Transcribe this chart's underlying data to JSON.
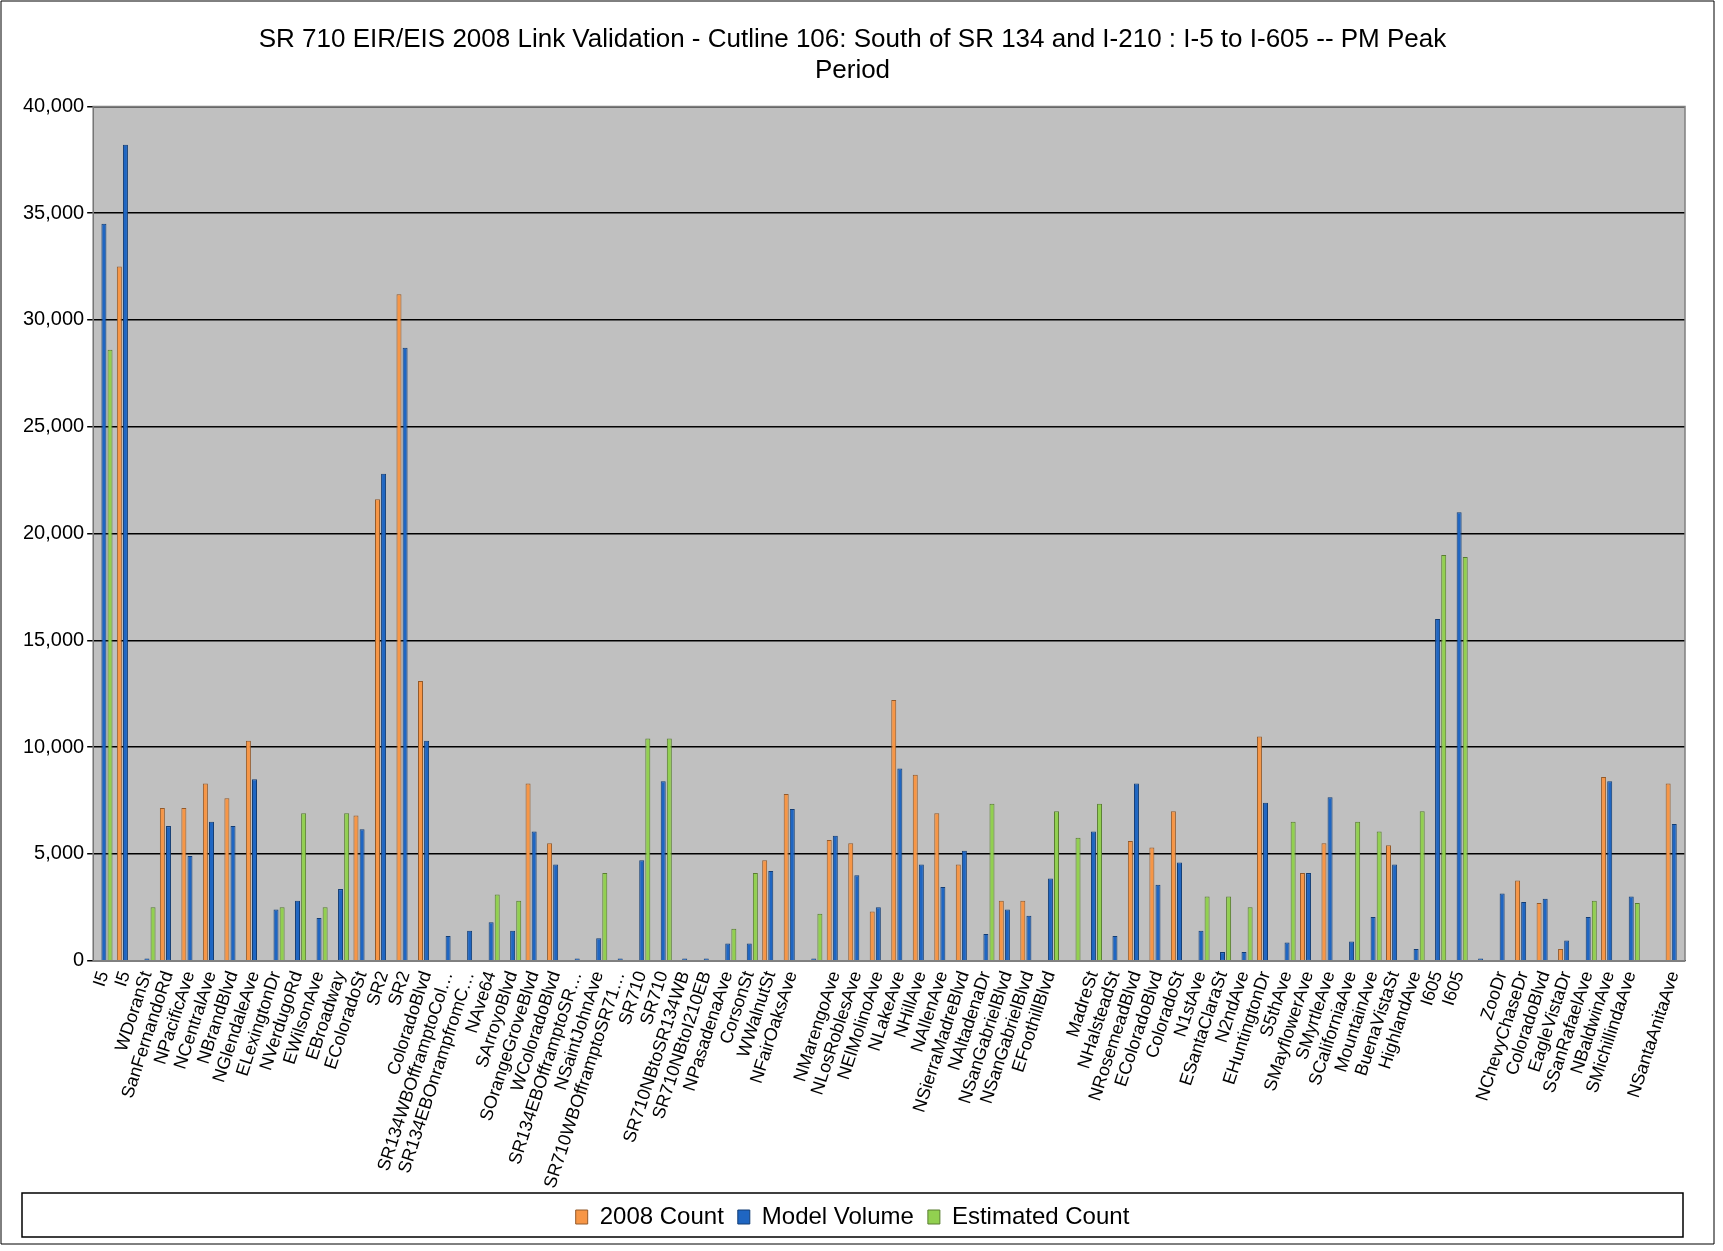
{
  "chart_data": {
    "type": "bar",
    "title": "SR 710 EIR/EIS 2008 Link Validation - Cutline 106: South of SR 134 and I-210 : I-5 to I-605 -- PM Peak Period",
    "categories": [
      "I5",
      "I5",
      "WDoranSt",
      "SanFernandoRd",
      "NPacificAve",
      "NCentralAve",
      "NBrandBlvd",
      "NGlendaleAve",
      "ELexingtonDr",
      "NVerdugoRd",
      "EWilsonAve",
      "EBroadway",
      "EColoradoSt",
      "SR2",
      "SR2",
      "ColoradoBlvd",
      "SR134WBOfframptoCol…",
      "SR134EBOnrampfromC…",
      "NAve64",
      "SArroyoBlvd",
      "SOrangeGroveBlvd",
      "WColoradoBlvd",
      "SR134EBOfframptoSR…",
      "NSaintJohnAve",
      "SR710WBOfframptoSR71…",
      "SR710",
      "SR710",
      "SR710NBtoSR134WB",
      "SR710NBtoI210EB",
      "NPasadenaAve",
      "CorsonSt",
      "WWalnutSt",
      "NFairOaksAve",
      null,
      "NMarengoAve",
      "NLosRoblesAve",
      "NElMolinoAve",
      "NLakeAve",
      "NHillAve",
      "NAllenAve",
      "NSierraMadreBlvd",
      "NAltadenaDr",
      "NSanGabrielBlvd",
      "NSanGabrielBlvd",
      "EFoothillBlvd",
      null,
      "MadreSt",
      "NHalsteadSt",
      "NRosemeadBlvd",
      "EColoradoBlvd",
      "ColoradoSt",
      "N1stAve",
      "ESantaClaraSt",
      "N2ndAve",
      "EHuntingtonDr",
      "S5thAve",
      "SMayflowerAve",
      "SMyrtleAve",
      "SCaliforniaAve",
      "MountainAve",
      "BuenaVistaSt",
      "HighlandAve",
      "I605",
      "I605",
      null,
      "ZooDr",
      "NChevyChaseDr",
      "ColoradoBlvd",
      "EagleVistaDr",
      "SSanRafaelAve",
      "NBaldwinAve",
      "SMichillindaAve",
      null,
      "NSantaAnitaAve"
    ],
    "series": [
      {
        "name": "2008 Count",
        "color": "#f79646",
        "values": [
          null,
          32500,
          null,
          7150,
          7150,
          8300,
          7600,
          10300,
          null,
          null,
          null,
          null,
          6800,
          21600,
          31200,
          13100,
          null,
          null,
          null,
          null,
          8300,
          5500,
          null,
          null,
          null,
          null,
          null,
          null,
          null,
          null,
          null,
          4700,
          7800,
          null,
          5650,
          5500,
          2300,
          12200,
          8700,
          6900,
          4500,
          null,
          2800,
          2800,
          null,
          null,
          null,
          null,
          5600,
          5300,
          7000,
          null,
          null,
          null,
          10500,
          null,
          4100,
          5500,
          null,
          null,
          5400,
          null,
          null,
          null,
          null,
          null,
          3750,
          2700,
          550,
          null,
          8600,
          null,
          null,
          8300
        ]
      },
      {
        "name": "Model Volume",
        "color": "#1f66c2",
        "values": [
          34500,
          38200,
          100,
          6300,
          4900,
          6500,
          6300,
          8500,
          2400,
          2800,
          2000,
          3350,
          6150,
          22800,
          28700,
          10300,
          1150,
          1400,
          1800,
          1400,
          6050,
          4500,
          100,
          1050,
          100,
          4700,
          8400,
          100,
          100,
          800,
          800,
          4200,
          7100,
          100,
          5850,
          4000,
          2500,
          9000,
          4500,
          3450,
          5150,
          1250,
          2400,
          2100,
          3850,
          null,
          6050,
          1150,
          8300,
          3550,
          4600,
          1400,
          400,
          400,
          7400,
          850,
          4100,
          7650,
          900,
          2050,
          4500,
          550,
          16000,
          21000,
          100,
          3150,
          2750,
          2900,
          950,
          2050,
          8400,
          3000,
          null,
          6400
        ]
      },
      {
        "name": "Estimated Count",
        "color": "#92d050",
        "values": [
          28600,
          null,
          2500,
          null,
          null,
          null,
          null,
          null,
          2500,
          6900,
          2500,
          6900,
          null,
          null,
          null,
          null,
          null,
          null,
          3100,
          2800,
          null,
          null,
          null,
          4100,
          null,
          10400,
          10400,
          null,
          null,
          1500,
          4100,
          null,
          null,
          2200,
          null,
          null,
          null,
          null,
          null,
          null,
          null,
          7350,
          null,
          null,
          7000,
          5750,
          7350,
          null,
          null,
          null,
          null,
          3000,
          3000,
          2500,
          null,
          6500,
          null,
          null,
          6500,
          6050,
          null,
          7000,
          19000,
          18900,
          null,
          null,
          null,
          null,
          null,
          2800,
          null,
          2700,
          null,
          null
        ]
      }
    ],
    "ylim": [
      0,
      40000
    ],
    "yticks": [
      {
        "value": 0,
        "label": "0"
      },
      {
        "value": 5000,
        "label": "5,000"
      },
      {
        "value": 10000,
        "label": "10,000"
      },
      {
        "value": 15000,
        "label": "15,000"
      },
      {
        "value": 20000,
        "label": "20,000"
      },
      {
        "value": 25000,
        "label": "25,000"
      },
      {
        "value": 30000,
        "label": "30,000"
      },
      {
        "value": 35000,
        "label": "35,000"
      },
      {
        "value": 40000,
        "label": "40,000"
      }
    ],
    "grid": "y",
    "legend": "bottom"
  }
}
